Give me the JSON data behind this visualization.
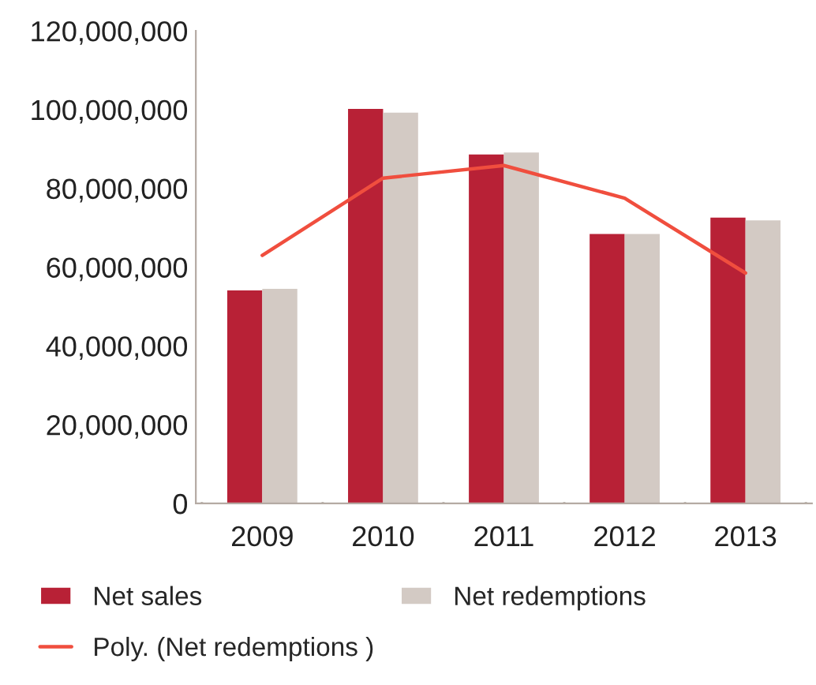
{
  "chart_data": {
    "type": "bar",
    "categories": [
      "2009",
      "2010",
      "2011",
      "2012",
      "2013"
    ],
    "series": [
      {
        "name": "Net sales",
        "color": "#b82136",
        "values": [
          54100000,
          100200000,
          88600000,
          68400000,
          72600000
        ]
      },
      {
        "name": "Net redemptions",
        "color": "#d3cac4",
        "values": [
          54500000,
          99200000,
          89100000,
          68400000,
          71900000
        ]
      },
      {
        "name": "Poly. (Net redemptions )",
        "type": "line",
        "color": "#f04e3e",
        "values": [
          63000000,
          82600000,
          85800000,
          77500000,
          58500000
        ]
      }
    ],
    "ylim": [
      0,
      120000000
    ],
    "yticks": [
      {
        "value": 0,
        "label": "0"
      },
      {
        "value": 20000000,
        "label": "20,000,000"
      },
      {
        "value": 40000000,
        "label": "40,000,000"
      },
      {
        "value": 60000000,
        "label": "60,000,000"
      },
      {
        "value": 80000000,
        "label": "80,000,000"
      },
      {
        "value": 100000000,
        "label": "100,000,000"
      },
      {
        "value": 120000000,
        "label": "120,000,000"
      }
    ],
    "grid": false,
    "legend": "bottom"
  }
}
